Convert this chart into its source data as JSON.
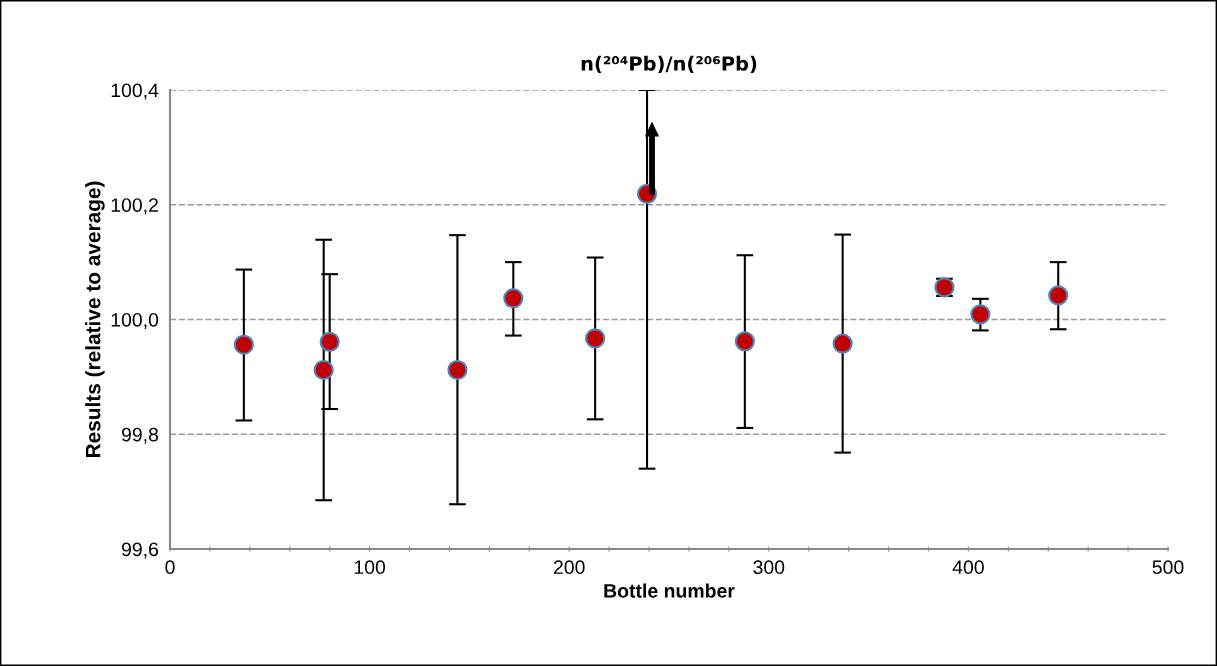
{
  "chart_data": {
    "type": "scatter",
    "title": "n(²⁰⁴Pb)/n(²⁰⁶Pb)",
    "xlabel": "Bottle number",
    "ylabel": "Results (relative to average)",
    "x": [
      37,
      77,
      80,
      144,
      172,
      213,
      239,
      288,
      337,
      388,
      406,
      445
    ],
    "series": [
      {
        "color": "#c00000",
        "values": [
          99.956,
          99.912,
          99.961,
          99.912,
          100.037,
          99.967,
          100.219,
          99.962,
          99.958,
          100.056,
          100.009,
          100.042
        ],
        "errors": [
          [
            99.824,
            100.087
          ],
          [
            99.685,
            100.139
          ],
          [
            99.844,
            100.079
          ],
          [
            99.678,
            100.147
          ],
          [
            99.972,
            100.1
          ],
          [
            99.826,
            100.108
          ],
          [
            99.74,
            100.4
          ],
          [
            99.811,
            100.112
          ],
          [
            99.768,
            100.148
          ],
          [
            100.041,
            100.071
          ],
          [
            99.981,
            100.036
          ],
          [
            99.983,
            100.1
          ]
        ]
      }
    ],
    "marker": "circle",
    "grid": "y",
    "legend": false,
    "xlim": [
      0,
      500
    ],
    "ylim": [
      99.6,
      100.4
    ],
    "xticks": [
      0,
      {
        "value": 20,
        "label": null
      },
      {
        "value": 40,
        "label": null
      },
      {
        "value": 60,
        "label": null
      },
      {
        "value": 80,
        "label": null
      },
      100,
      {
        "value": 120,
        "label": null
      },
      {
        "value": 140,
        "label": null
      },
      {
        "value": 160,
        "label": null
      },
      {
        "value": 180,
        "label": null
      },
      200,
      {
        "value": 220,
        "label": null
      },
      {
        "value": 240,
        "label": null
      },
      {
        "value": 260,
        "label": null
      },
      {
        "value": 280,
        "label": null
      },
      300,
      {
        "value": 320,
        "label": null
      },
      {
        "value": 340,
        "label": null
      },
      {
        "value": 360,
        "label": null
      },
      {
        "value": 380,
        "label": null
      },
      400,
      {
        "value": 420,
        "label": null
      },
      {
        "value": 440,
        "label": null
      },
      {
        "value": 460,
        "label": null
      },
      {
        "value": 480,
        "label": null
      },
      500
    ],
    "yticks": [
      {
        "value": 99.6,
        "label": "99,6"
      },
      {
        "value": 99.8,
        "label": "99,8"
      },
      {
        "value": 100.0,
        "label": "100,0"
      },
      {
        "value": 100.2,
        "label": "100,2"
      },
      {
        "value": 100.4,
        "label": "100,4"
      }
    ]
  }
}
